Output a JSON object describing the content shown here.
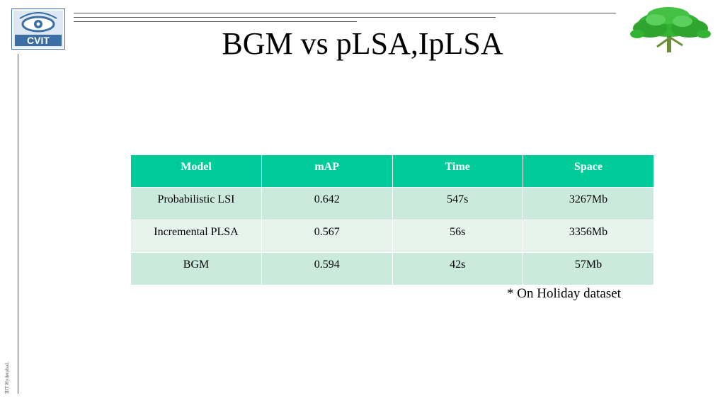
{
  "slide": {
    "title": "BGM vs pLSA,IpLSA",
    "logo_text": "CVIT",
    "note": "* On Holiday dataset",
    "footer": "IIIT Hyderabad."
  },
  "table": {
    "headers": [
      "Model",
      "mAP",
      "Time",
      "Space"
    ],
    "rows": [
      [
        "Probabilistic LSI",
        "0.642",
        "547s",
        "3267Mb"
      ],
      [
        "Incremental PLSA",
        "0.567",
        "56s",
        "3356Mb"
      ],
      [
        "BGM",
        "0.594",
        "42s",
        "57Mb"
      ]
    ]
  },
  "colors": {
    "header_bg": "#00cc99",
    "row_odd_bg": "#cce9dd",
    "row_even_bg": "#e7f4ee",
    "logo_blue": "#3a6ea5",
    "tree_green": "#33b233"
  },
  "icons": {
    "logo": "cvit-eye-logo",
    "tree": "tree-logo"
  }
}
